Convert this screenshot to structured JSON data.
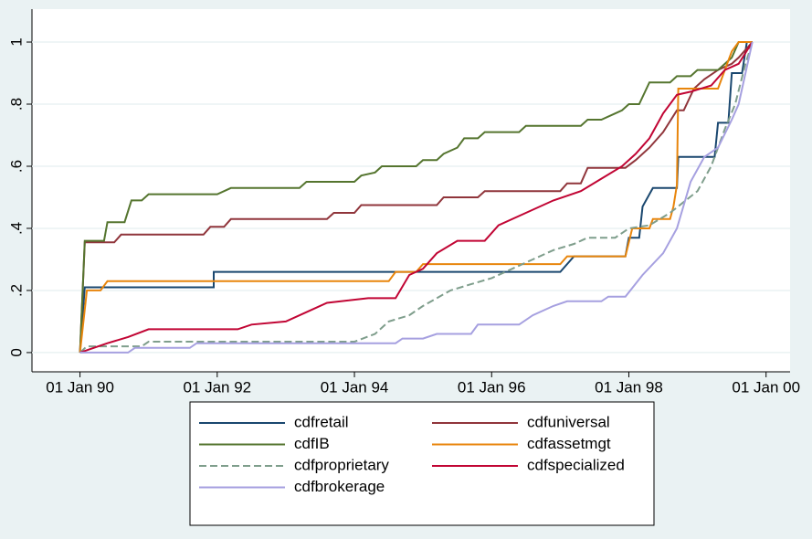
{
  "chart_data": {
    "type": "line",
    "grid": true,
    "legend": "bottom",
    "legend_columns": 2,
    "xlim": [
      1989.3,
      2000.35
    ],
    "ylim": [
      -0.062,
      1.106
    ],
    "xticks": [
      {
        "value": 1990,
        "label": "01 Jan 90"
      },
      {
        "value": 1992,
        "label": "01 Jan 92"
      },
      {
        "value": 1994,
        "label": "01 Jan 94"
      },
      {
        "value": 1996,
        "label": "01 Jan 96"
      },
      {
        "value": 1998,
        "label": "01 Jan 98"
      },
      {
        "value": 2000,
        "label": "01 Jan 00"
      }
    ],
    "yticks": [
      0,
      {
        "value": 0.2,
        "label": ".2"
      },
      {
        "value": 0.4,
        "label": ".4"
      },
      {
        "value": 0.6,
        "label": ".6"
      },
      {
        "value": 0.8,
        "label": ".8"
      },
      1
    ],
    "series": [
      {
        "name": "cdfretail",
        "color": "#1a476f",
        "dash": false,
        "x": [
          1990,
          1990.07,
          1991.95,
          1991.95,
          1997.0,
          1997.2,
          1997.95,
          1998.0,
          1998.15,
          1998.2,
          1998.35,
          1998.7,
          1998.72,
          1999.25,
          1999.3,
          1999.45,
          1999.5,
          1999.65,
          1999.72,
          1999.8
        ],
        "values": [
          0,
          0.21,
          0.21,
          0.26,
          0.26,
          0.31,
          0.31,
          0.37,
          0.37,
          0.47,
          0.53,
          0.53,
          0.63,
          0.63,
          0.74,
          0.74,
          0.9,
          0.9,
          1.0,
          1.0
        ]
      },
      {
        "name": "cdfuniversal",
        "color": "#90353b",
        "dash": false,
        "x": [
          1990,
          1990.07,
          1990.5,
          1990.6,
          1991.8,
          1991.9,
          1992.1,
          1992.2,
          1993.6,
          1993.7,
          1994.0,
          1994.1,
          1995.2,
          1995.3,
          1995.8,
          1995.9,
          1997.0,
          1997.1,
          1997.3,
          1997.4,
          1997.95,
          1998.1,
          1998.3,
          1998.5,
          1998.7,
          1998.8,
          1998.95,
          1999.1,
          1999.3,
          1999.5,
          1999.6,
          1999.8
        ],
        "values": [
          0,
          0.355,
          0.355,
          0.38,
          0.38,
          0.405,
          0.405,
          0.43,
          0.43,
          0.45,
          0.45,
          0.475,
          0.475,
          0.5,
          0.5,
          0.52,
          0.52,
          0.545,
          0.545,
          0.595,
          0.595,
          0.62,
          0.66,
          0.71,
          0.78,
          0.78,
          0.85,
          0.88,
          0.91,
          0.93,
          0.95,
          1.0
        ]
      },
      {
        "name": "cdfIB",
        "color": "#55752f",
        "dash": false,
        "x": [
          1990,
          1990.07,
          1990.35,
          1990.4,
          1990.65,
          1990.75,
          1990.9,
          1991.0,
          1992.0,
          1992.2,
          1993.2,
          1993.3,
          1994.0,
          1994.1,
          1994.3,
          1994.4,
          1994.9,
          1995.0,
          1995.2,
          1995.3,
          1995.5,
          1995.6,
          1995.8,
          1995.9,
          1996.4,
          1996.5,
          1997.3,
          1997.4,
          1997.6,
          1997.8,
          1997.9,
          1998.0,
          1998.15,
          1998.3,
          1998.6,
          1998.7,
          1998.9,
          1999.0,
          1999.3,
          1999.5,
          1999.6,
          1999.8
        ],
        "values": [
          0,
          0.36,
          0.36,
          0.42,
          0.42,
          0.49,
          0.49,
          0.51,
          0.51,
          0.53,
          0.53,
          0.55,
          0.55,
          0.57,
          0.58,
          0.6,
          0.6,
          0.62,
          0.62,
          0.64,
          0.66,
          0.69,
          0.69,
          0.71,
          0.71,
          0.73,
          0.73,
          0.75,
          0.75,
          0.77,
          0.78,
          0.8,
          0.8,
          0.87,
          0.87,
          0.89,
          0.89,
          0.91,
          0.91,
          0.95,
          1.0,
          1.0
        ]
      },
      {
        "name": "cdfassetmgt",
        "color": "#e8850c",
        "dash": false,
        "x": [
          1990,
          1990.1,
          1990.3,
          1990.4,
          1994.5,
          1994.6,
          1994.9,
          1995.0,
          1997.0,
          1997.1,
          1997.95,
          1998.05,
          1998.3,
          1998.35,
          1998.6,
          1998.65,
          1998.7,
          1998.72,
          1999.3,
          1999.4,
          1999.5,
          1999.6,
          1999.8
        ],
        "values": [
          0,
          0.2,
          0.2,
          0.23,
          0.23,
          0.26,
          0.26,
          0.285,
          0.285,
          0.31,
          0.31,
          0.4,
          0.4,
          0.43,
          0.43,
          0.47,
          0.54,
          0.85,
          0.85,
          0.91,
          0.97,
          1.0,
          1.0
        ]
      },
      {
        "name": "cdfproprietary",
        "color": "#7f9e8c",
        "dash": true,
        "x": [
          1990,
          1990.1,
          1990.9,
          1991.0,
          1994.0,
          1994.3,
          1994.5,
          1994.8,
          1995.0,
          1995.4,
          1995.7,
          1996.0,
          1996.3,
          1996.6,
          1996.9,
          1997.2,
          1997.4,
          1997.8,
          1998.0,
          1998.3,
          1998.6,
          1999.0,
          1999.2,
          1999.4,
          1999.55,
          1999.7,
          1999.8
        ],
        "values": [
          0,
          0.02,
          0.02,
          0.035,
          0.035,
          0.06,
          0.1,
          0.12,
          0.15,
          0.2,
          0.22,
          0.24,
          0.27,
          0.3,
          0.33,
          0.35,
          0.37,
          0.37,
          0.4,
          0.41,
          0.45,
          0.52,
          0.6,
          0.72,
          0.8,
          0.93,
          1.0
        ]
      },
      {
        "name": "cdfspecialized",
        "color": "#c10534",
        "dash": false,
        "x": [
          1990,
          1990.2,
          1990.4,
          1990.7,
          1991.0,
          1992.3,
          1992.5,
          1993.0,
          1993.3,
          1993.6,
          1994.2,
          1994.6,
          1994.8,
          1995.0,
          1995.2,
          1995.5,
          1995.9,
          1996.1,
          1996.5,
          1996.9,
          1997.3,
          1997.6,
          1997.9,
          1998.1,
          1998.3,
          1998.5,
          1998.7,
          1998.9,
          1999.2,
          1999.4,
          1999.6,
          1999.8
        ],
        "values": [
          0,
          0.015,
          0.03,
          0.05,
          0.075,
          0.075,
          0.09,
          0.1,
          0.13,
          0.16,
          0.175,
          0.175,
          0.25,
          0.27,
          0.32,
          0.36,
          0.36,
          0.41,
          0.45,
          0.49,
          0.52,
          0.56,
          0.6,
          0.64,
          0.69,
          0.77,
          0.83,
          0.84,
          0.86,
          0.91,
          0.93,
          1.0
        ]
      },
      {
        "name": "cdfbrokerage",
        "color": "#a6a0e0",
        "dash": false,
        "x": [
          1990,
          1990.7,
          1990.8,
          1991.6,
          1991.7,
          1994.6,
          1994.7,
          1995.0,
          1995.2,
          1995.7,
          1995.8,
          1996.4,
          1996.6,
          1996.9,
          1997.1,
          1997.6,
          1997.7,
          1997.95,
          1998.2,
          1998.5,
          1998.7,
          1998.9,
          1999.1,
          1999.3,
          1999.5,
          1999.6,
          1999.7,
          1999.8
        ],
        "values": [
          0,
          0,
          0.015,
          0.015,
          0.03,
          0.03,
          0.045,
          0.045,
          0.06,
          0.06,
          0.09,
          0.09,
          0.12,
          0.15,
          0.165,
          0.165,
          0.18,
          0.18,
          0.25,
          0.32,
          0.4,
          0.55,
          0.63,
          0.66,
          0.75,
          0.8,
          0.9,
          1.0
        ]
      }
    ]
  }
}
